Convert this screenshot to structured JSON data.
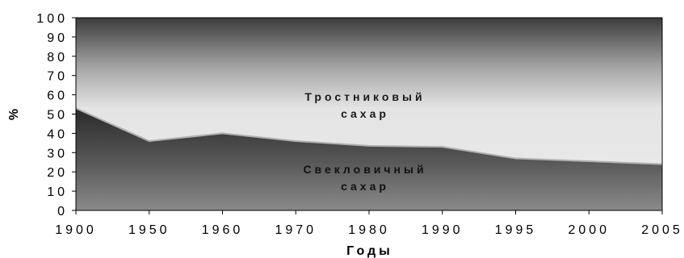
{
  "chart_data": {
    "type": "area",
    "stacked": true,
    "percent": true,
    "x": [
      1900,
      1950,
      1960,
      1970,
      1980,
      1990,
      1995,
      2000,
      2005
    ],
    "x_tick_labels": [
      "1900",
      "1950",
      "1960",
      "1970",
      "1980",
      "1990",
      "1995",
      "2000",
      "2005"
    ],
    "xlabel": "Годы",
    "ylabel": "%",
    "ylim": [
      0,
      100
    ],
    "y_ticks": [
      0,
      10,
      20,
      30,
      40,
      50,
      60,
      70,
      80,
      90,
      100
    ],
    "y_tick_labels": [
      "0",
      "10",
      "20",
      "30",
      "40",
      "50",
      "60",
      "70",
      "80",
      "90",
      "100"
    ],
    "grid": false,
    "legend": "none",
    "series": [
      {
        "name": "Свекловичный сахар",
        "label_lines": [
          "Свекловичный",
          "сахар"
        ],
        "values": [
          53,
          36,
          40,
          36,
          33.5,
          33,
          27,
          25.5,
          24
        ],
        "color": "#555555"
      },
      {
        "name": "Тростниковый сахар",
        "label_lines": [
          "Тростниковый",
          "сахар"
        ],
        "values": [
          47,
          64,
          60,
          64,
          66.5,
          67,
          73,
          74.5,
          76
        ],
        "color": "#d9d9d9"
      }
    ]
  }
}
